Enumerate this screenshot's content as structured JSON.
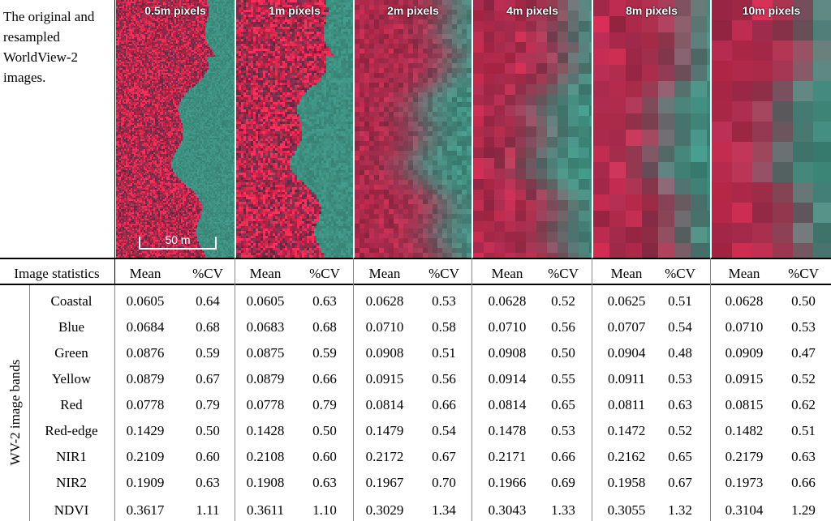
{
  "caption": "The original and resampled WorldView-2 images.",
  "panels": [
    {
      "label": "0.5m pixels"
    },
    {
      "label": "1m pixels"
    },
    {
      "label": "2m pixels"
    },
    {
      "label": "4m pixels"
    },
    {
      "label": "8m pixels"
    },
    {
      "label": "10m pixels"
    }
  ],
  "scale_bar": "50 m",
  "colors": {
    "vegetation": "#d8284e",
    "water": "#3e8f80",
    "dark_tree": "#6a2a46"
  },
  "header": {
    "first_col": "Image statistics",
    "mean": "Mean",
    "cv": "%CV"
  },
  "group_label": "WV-2 image bands",
  "bands": [
    {
      "name": "Coastal",
      "values": [
        "0.0605",
        "0.64",
        "0.0605",
        "0.63",
        "0.0628",
        "0.53",
        "0.0628",
        "0.52",
        "0.0625",
        "0.51",
        "0.0628",
        "0.50"
      ]
    },
    {
      "name": "Blue",
      "values": [
        "0.0684",
        "0.68",
        "0.0683",
        "0.68",
        "0.0710",
        "0.58",
        "0.0710",
        "0.56",
        "0.0707",
        "0.54",
        "0.0710",
        "0.53"
      ]
    },
    {
      "name": "Green",
      "values": [
        "0.0876",
        "0.59",
        "0.0875",
        "0.59",
        "0.0908",
        "0.51",
        "0.0908",
        "0.50",
        "0.0904",
        "0.48",
        "0.0909",
        "0.47"
      ]
    },
    {
      "name": "Yellow",
      "values": [
        "0.0879",
        "0.67",
        "0.0879",
        "0.66",
        "0.0915",
        "0.56",
        "0.0914",
        "0.55",
        "0.0911",
        "0.53",
        "0.0915",
        "0.52"
      ]
    },
    {
      "name": "Red",
      "values": [
        "0.0778",
        "0.79",
        "0.0778",
        "0.79",
        "0.0814",
        "0.66",
        "0.0814",
        "0.65",
        "0.0811",
        "0.63",
        "0.0815",
        "0.62"
      ]
    },
    {
      "name": "Red-edge",
      "values": [
        "0.1429",
        "0.50",
        "0.1428",
        "0.50",
        "0.1479",
        "0.54",
        "0.1478",
        "0.53",
        "0.1472",
        "0.52",
        "0.1482",
        "0.51"
      ]
    },
    {
      "name": "NIR1",
      "values": [
        "0.2109",
        "0.60",
        "0.2108",
        "0.60",
        "0.2172",
        "0.67",
        "0.2171",
        "0.66",
        "0.2162",
        "0.65",
        "0.2179",
        "0.63"
      ]
    },
    {
      "name": "NIR2",
      "values": [
        "0.1909",
        "0.63",
        "0.1908",
        "0.63",
        "0.1967",
        "0.70",
        "0.1966",
        "0.69",
        "0.1958",
        "0.67",
        "0.1973",
        "0.66"
      ]
    },
    {
      "name": "NDVI",
      "values": [
        "0.3617",
        "1.11",
        "0.3611",
        "1.10",
        "0.3029",
        "1.34",
        "0.3043",
        "1.33",
        "0.3055",
        "1.32",
        "0.3104",
        "1.29"
      ]
    }
  ]
}
